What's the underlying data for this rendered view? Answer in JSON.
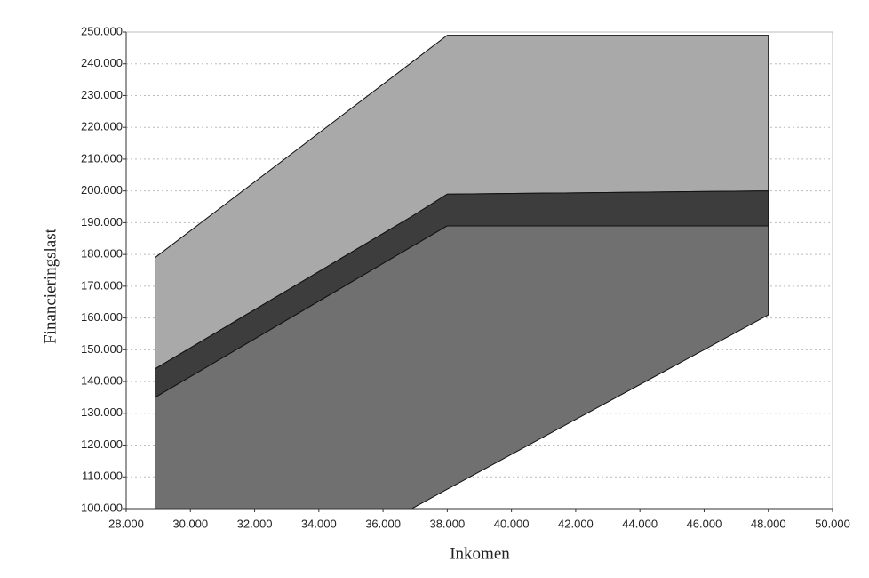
{
  "chart_data": {
    "type": "range-area",
    "x_label": "Inkomen",
    "y_label": "Financieringslast",
    "x": [
      28900,
      36900,
      38000,
      48000
    ],
    "series": [
      {
        "color": "#a9a9a9",
        "upper": [
          179000,
          240500,
          249000,
          249000
        ],
        "lower": [
          144000,
          192000,
          199000,
          200000
        ]
      },
      {
        "color": "#3d3d3d",
        "upper": [
          144000,
          192000,
          199000,
          200000
        ],
        "lower": [
          135000,
          182500,
          189000,
          189000
        ]
      },
      {
        "color": "#707070",
        "upper": [
          135000,
          182500,
          189000,
          189000
        ],
        "lower": [
          100000,
          100000,
          106100,
          161000
        ]
      }
    ],
    "xlim": [
      28000,
      50000
    ],
    "xticks": [
      {
        "value": 28000,
        "label": "28.000"
      },
      {
        "value": 30000,
        "label": "30.000"
      },
      {
        "value": 32000,
        "label": "32.000"
      },
      {
        "value": 34000,
        "label": "34.000"
      },
      {
        "value": 36000,
        "label": "36.000"
      },
      {
        "value": 38000,
        "label": "38.000"
      },
      {
        "value": 40000,
        "label": "40.000"
      },
      {
        "value": 42000,
        "label": "42.000"
      },
      {
        "value": 44000,
        "label": "44.000"
      },
      {
        "value": 46000,
        "label": "46.000"
      },
      {
        "value": 48000,
        "label": "48.000"
      },
      {
        "value": 50000,
        "label": "50.000"
      }
    ],
    "ylim": [
      100000,
      250000
    ],
    "yticks": [
      {
        "value": 100000,
        "label": "100.000"
      },
      {
        "value": 110000,
        "label": "110.000"
      },
      {
        "value": 120000,
        "label": "120.000"
      },
      {
        "value": 130000,
        "label": "130.000"
      },
      {
        "value": 140000,
        "label": "140.000"
      },
      {
        "value": 150000,
        "label": "150.000"
      },
      {
        "value": 160000,
        "label": "160.000"
      },
      {
        "value": 170000,
        "label": "170.000"
      },
      {
        "value": 180000,
        "label": "180.000"
      },
      {
        "value": 190000,
        "label": "190.000"
      },
      {
        "value": 200000,
        "label": "200.000"
      },
      {
        "value": 210000,
        "label": "210.000"
      },
      {
        "value": 220000,
        "label": "220.000"
      },
      {
        "value": 230000,
        "label": "230.000"
      },
      {
        "value": 240000,
        "label": "240.000"
      },
      {
        "value": 250000,
        "label": "250.000"
      }
    ],
    "grid": true
  }
}
